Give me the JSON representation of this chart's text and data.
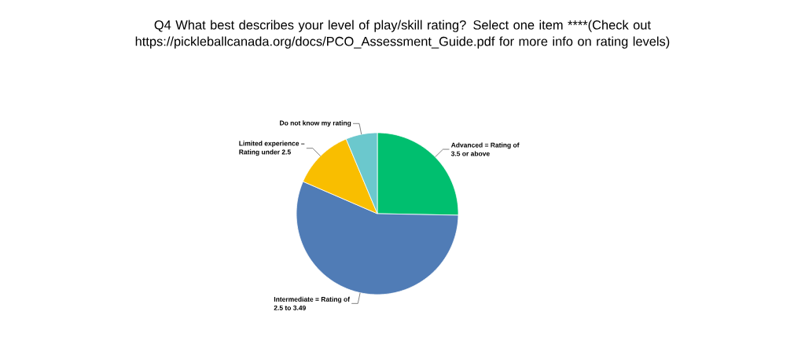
{
  "chart_data": {
    "type": "pie",
    "title": "Q4 What best describes your level of play/skill rating?     Select one item    ****(Check out https://pickleballcanada.org/docs/PCO_Assessment_Guide.pdf for more info on rating levels)",
    "categories": [
      "Advanced = Rating of 3.5 or above",
      "Intermediate = Rating of 2.5 to 3.49",
      "Limited experience – Rating under 2.5",
      "Do not know my rating"
    ],
    "values": [
      25.3,
      56.2,
      12.2,
      6.3
    ],
    "colors": [
      "#00bf6f",
      "#507cb6",
      "#f9be00",
      "#6bc8cd"
    ]
  }
}
